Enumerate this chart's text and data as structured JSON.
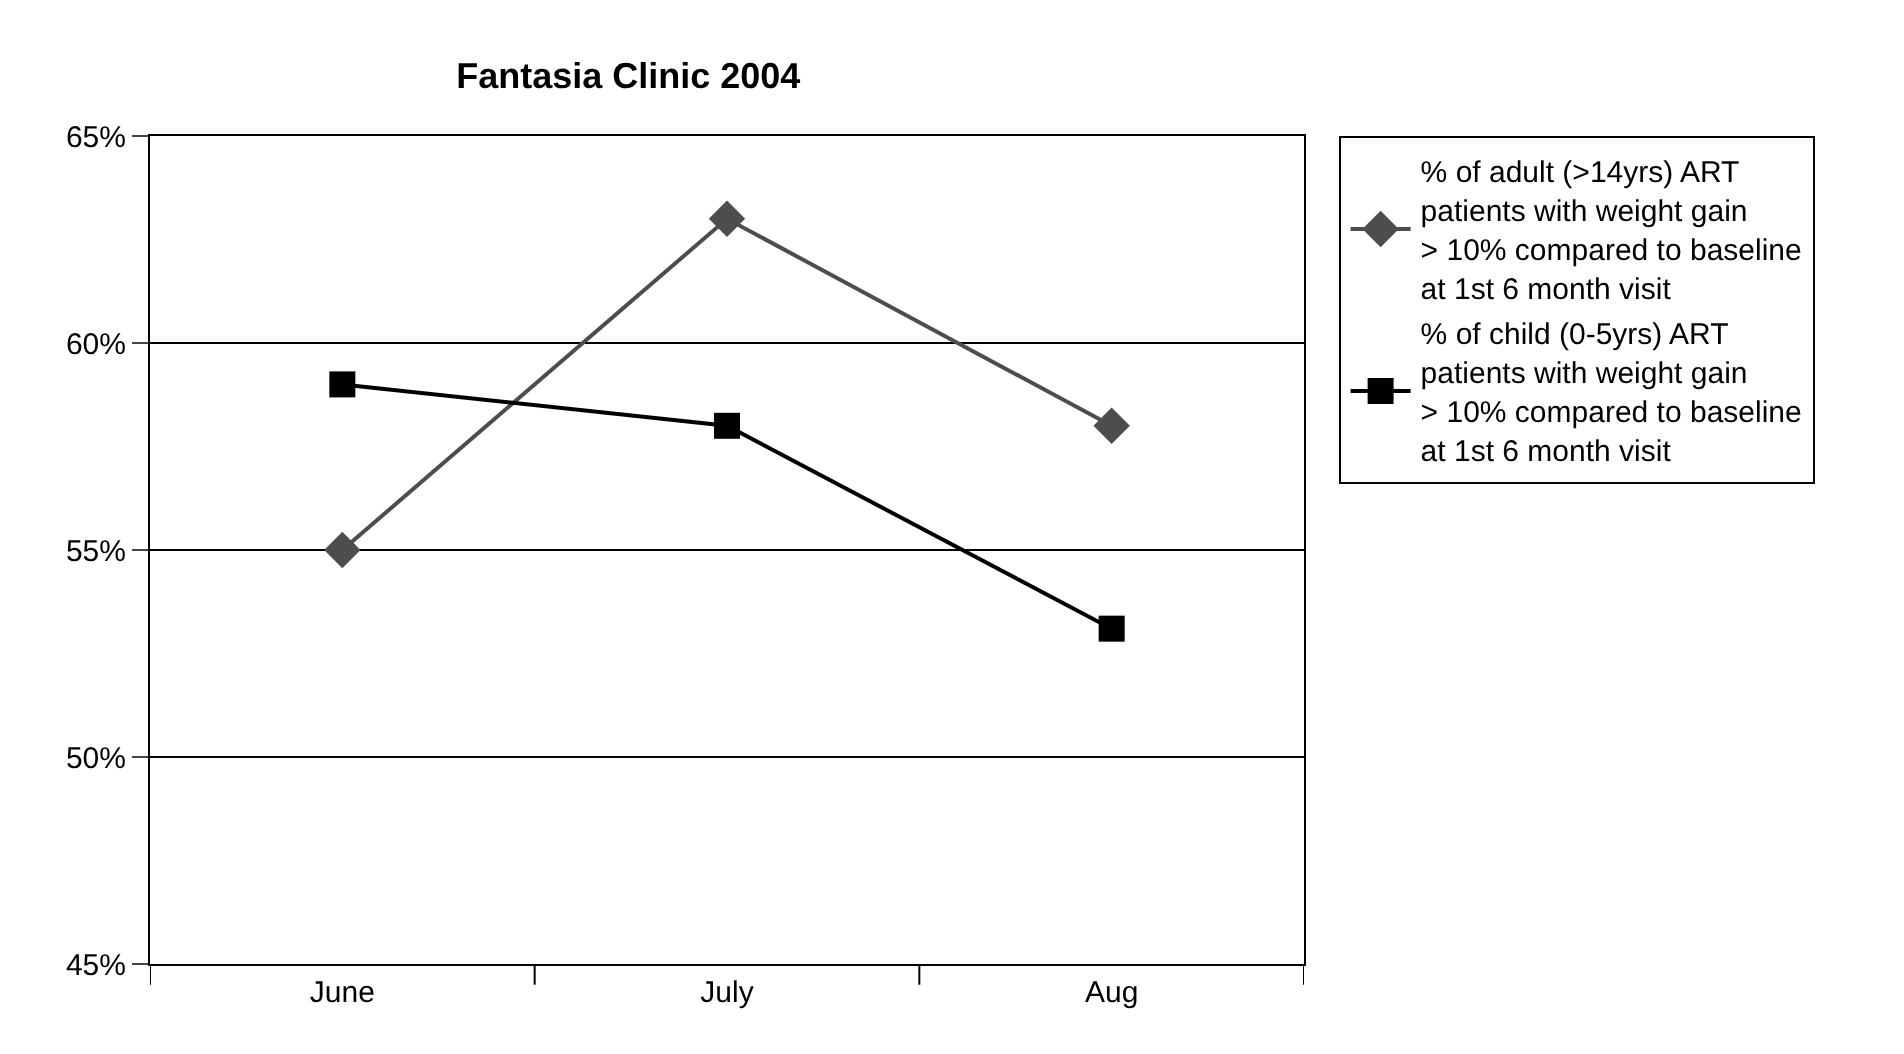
{
  "chart_data": {
    "type": "line",
    "title": "Fantasia Clinic 2004",
    "categories": [
      "June",
      "July",
      "Aug"
    ],
    "series": [
      {
        "name": "% of adult (>14yrs) ART patients with weight gain > 10% compared to baseline at 1st 6 month visit",
        "color": "#4d4d4d",
        "marker": "diamond",
        "values": [
          55,
          63,
          58
        ]
      },
      {
        "name": "% of child (0-5yrs) ART patients with weight gain > 10% compared to baseline at 1st 6 month visit",
        "color": "#000000",
        "marker": "square",
        "values": [
          59,
          58,
          53.1
        ]
      }
    ],
    "ylim": [
      45,
      65
    ],
    "yticks": [
      {
        "value": 45,
        "label": "45%"
      },
      {
        "value": 50,
        "label": "50%"
      },
      {
        "value": 55,
        "label": "55%"
      },
      {
        "value": 60,
        "label": "60%"
      },
      {
        "value": 65,
        "label": "65%"
      }
    ],
    "grid": "y",
    "legend": "right",
    "line_style": "solid"
  }
}
